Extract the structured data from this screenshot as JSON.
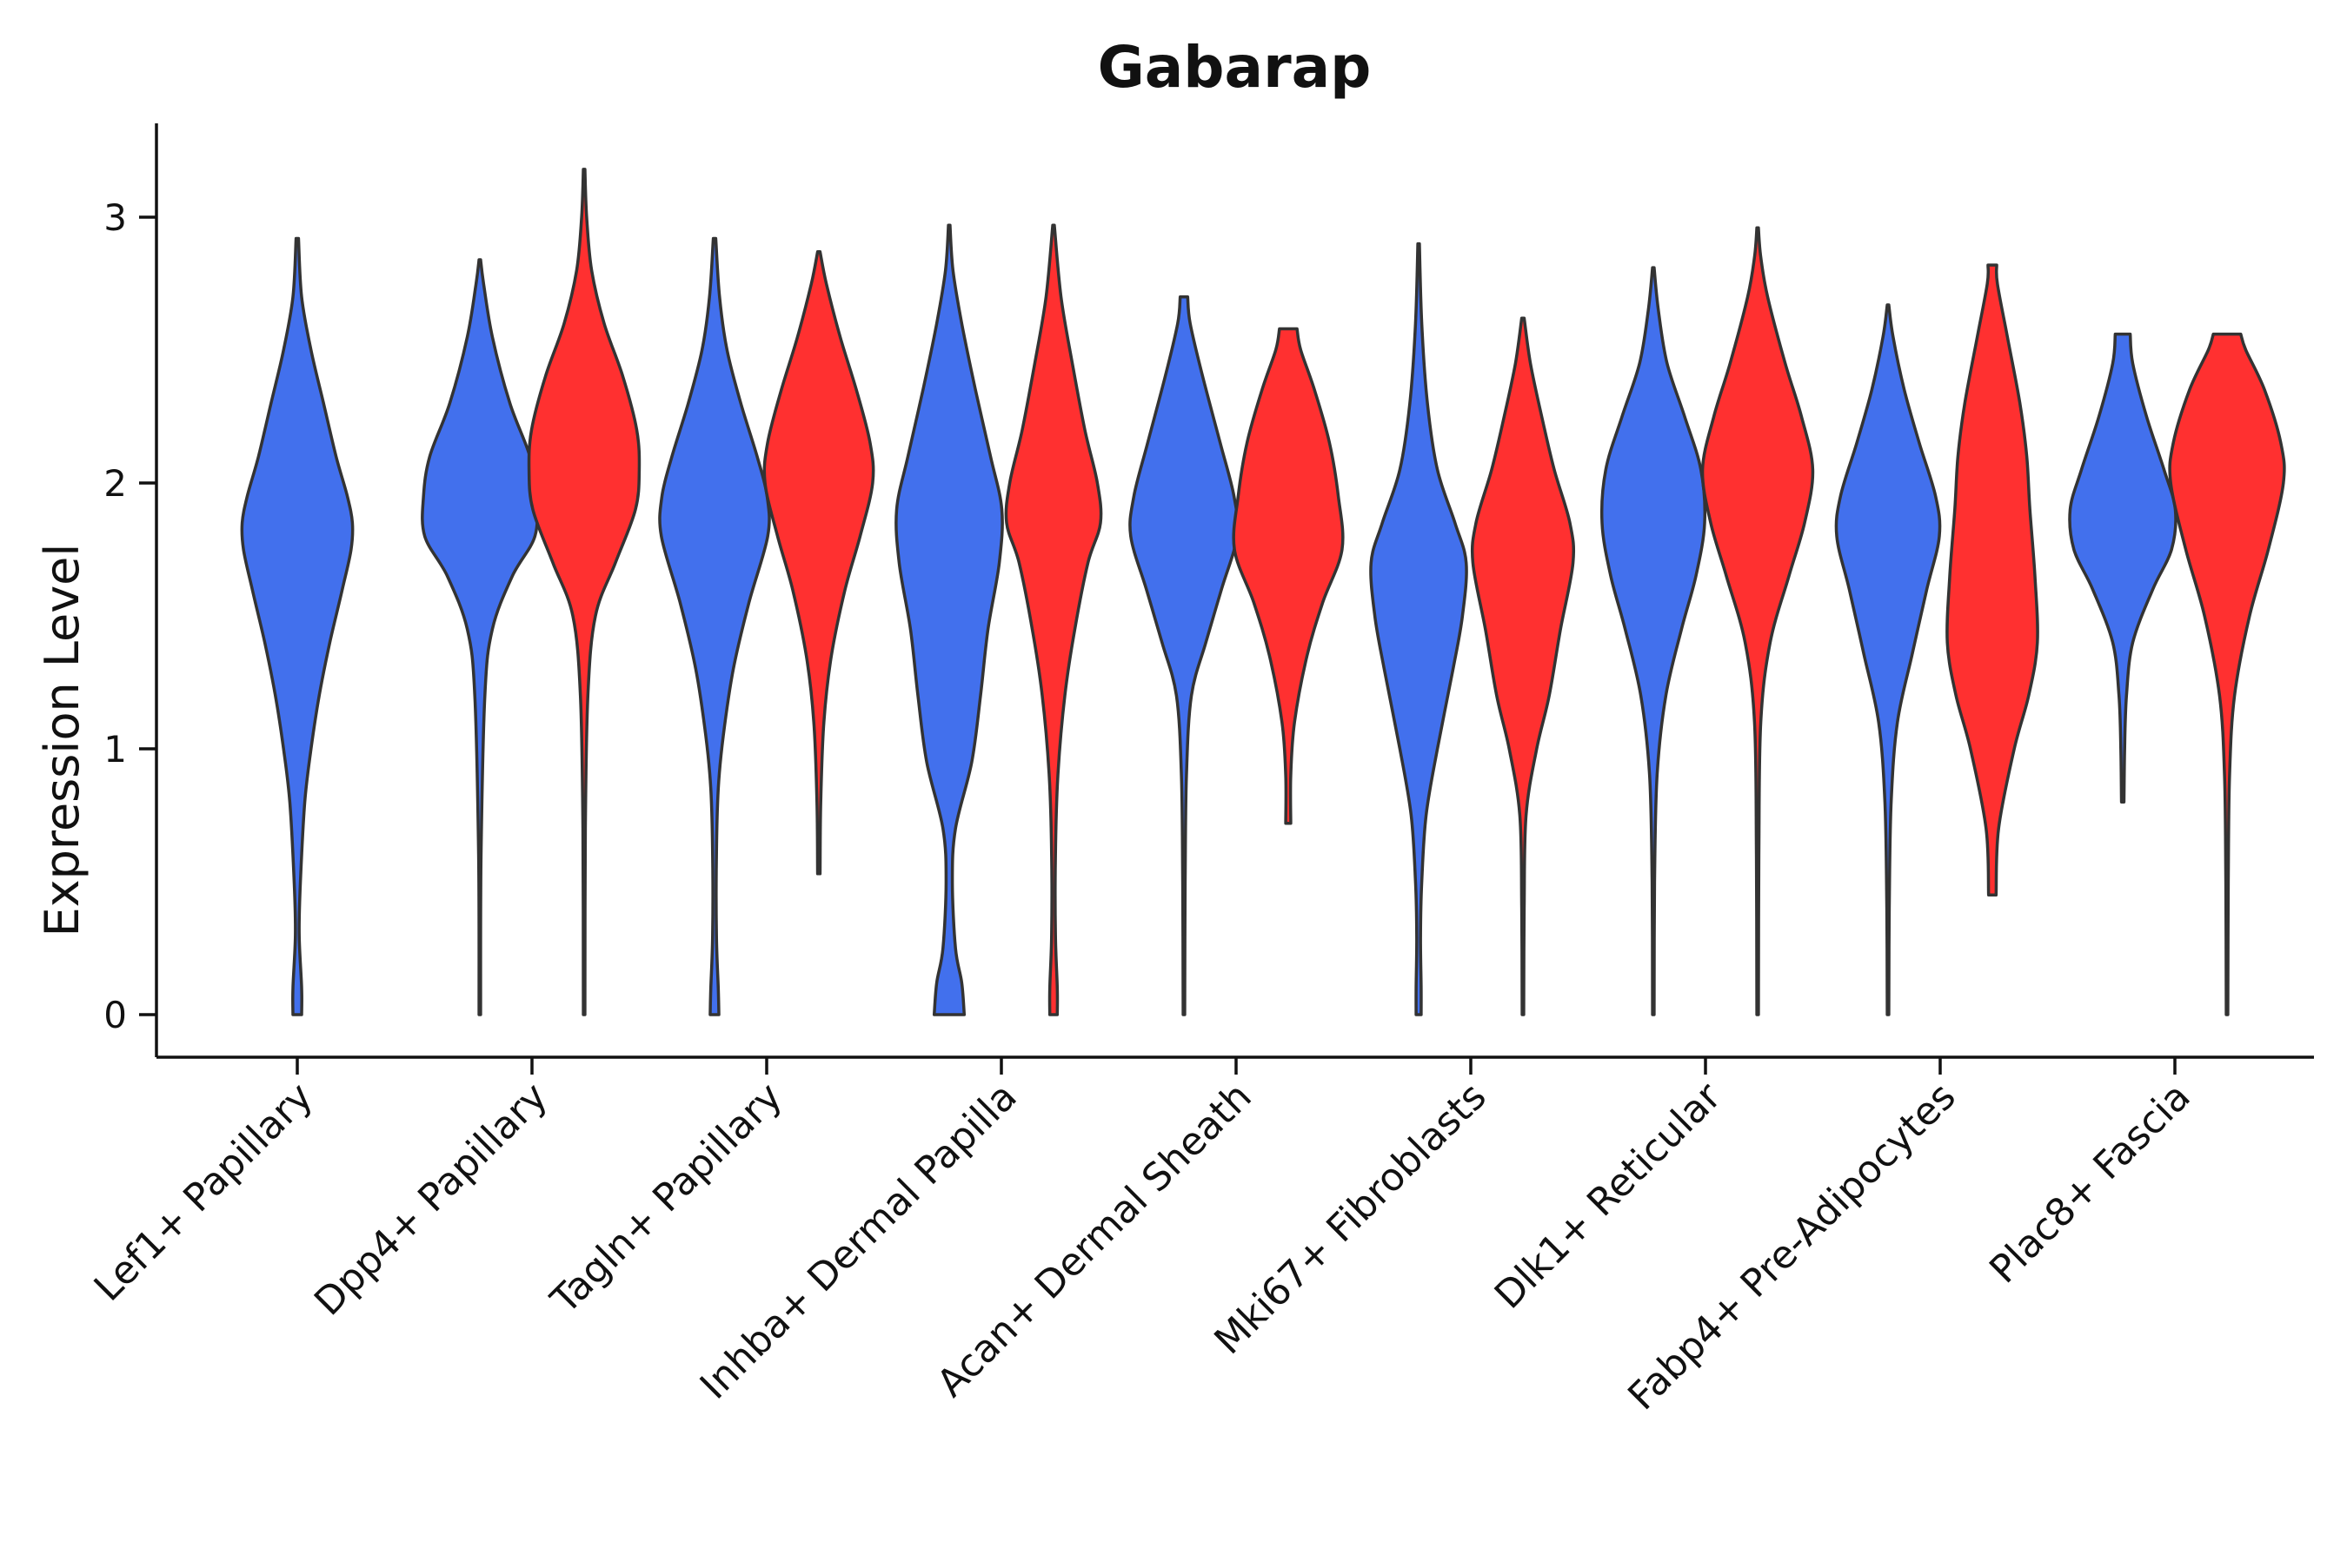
{
  "chart_data": {
    "type": "violin",
    "title": "Gabarap",
    "xlabel": "",
    "ylabel": "Expression Level",
    "ylim": [
      -0.15,
      3.35
    ],
    "yticks": [
      0,
      1,
      2,
      3
    ],
    "grid": false,
    "legend": "none",
    "colors": {
      "group_a": "#4270ED",
      "group_b": "#FF3030",
      "outline": "#333333"
    },
    "categories": [
      "Lef1+ Papillary",
      "Dpp4+ Papillary",
      "Tagln+ Papillary",
      "Inhba+ Dermal Papilla",
      "Acan+ Dermal Sheath",
      "Mki67+ Fibroblasts",
      "Dlk1+ Reticular",
      "Fabp4+ Pre-Adipocytes",
      "Plac8+ Fascia"
    ],
    "violins": [
      {
        "category": "Lef1+ Papillary",
        "group": "a",
        "min": 0.0,
        "max": 2.92,
        "profile": [
          [
            0.0,
            0.07
          ],
          [
            0.1,
            0.07
          ],
          [
            0.3,
            0.03
          ],
          [
            0.5,
            0.05
          ],
          [
            0.8,
            0.12
          ],
          [
            1.0,
            0.22
          ],
          [
            1.2,
            0.35
          ],
          [
            1.4,
            0.52
          ],
          [
            1.6,
            0.72
          ],
          [
            1.75,
            0.86
          ],
          [
            1.85,
            0.88
          ],
          [
            1.95,
            0.8
          ],
          [
            2.1,
            0.62
          ],
          [
            2.3,
            0.42
          ],
          [
            2.5,
            0.22
          ],
          [
            2.7,
            0.07
          ],
          [
            2.92,
            0.02
          ]
        ]
      },
      {
        "category": "Dpp4+ Papillary",
        "group": "a",
        "min": 0.0,
        "max": 2.84,
        "profile": [
          [
            0.0,
            0.01
          ],
          [
            0.6,
            0.02
          ],
          [
            1.2,
            0.08
          ],
          [
            1.45,
            0.2
          ],
          [
            1.65,
            0.52
          ],
          [
            1.8,
            0.88
          ],
          [
            1.95,
            0.9
          ],
          [
            2.1,
            0.8
          ],
          [
            2.3,
            0.48
          ],
          [
            2.55,
            0.2
          ],
          [
            2.75,
            0.06
          ],
          [
            2.84,
            0.01
          ]
        ]
      },
      {
        "category": "Dpp4+ Papillary",
        "group": "b",
        "min": 0.0,
        "max": 3.18,
        "profile": [
          [
            0.0,
            0.01
          ],
          [
            0.7,
            0.02
          ],
          [
            1.2,
            0.06
          ],
          [
            1.5,
            0.18
          ],
          [
            1.7,
            0.5
          ],
          [
            1.9,
            0.82
          ],
          [
            2.05,
            0.88
          ],
          [
            2.2,
            0.84
          ],
          [
            2.4,
            0.62
          ],
          [
            2.6,
            0.32
          ],
          [
            2.8,
            0.12
          ],
          [
            3.0,
            0.04
          ],
          [
            3.18,
            0.01
          ]
        ]
      },
      {
        "category": "Tagln+ Papillary",
        "group": "a",
        "min": 0.0,
        "max": 2.92,
        "profile": [
          [
            0.0,
            0.07
          ],
          [
            0.1,
            0.06
          ],
          [
            0.3,
            0.03
          ],
          [
            0.6,
            0.03
          ],
          [
            0.85,
            0.06
          ],
          [
            1.05,
            0.14
          ],
          [
            1.3,
            0.3
          ],
          [
            1.55,
            0.55
          ],
          [
            1.8,
            0.85
          ],
          [
            1.95,
            0.84
          ],
          [
            2.1,
            0.68
          ],
          [
            2.3,
            0.42
          ],
          [
            2.5,
            0.2
          ],
          [
            2.7,
            0.08
          ],
          [
            2.92,
            0.02
          ]
        ]
      },
      {
        "category": "Tagln+ Papillary",
        "group": "b",
        "min": 0.53,
        "max": 2.87,
        "profile": [
          [
            0.53,
            0.02
          ],
          [
            0.8,
            0.03
          ],
          [
            1.1,
            0.08
          ],
          [
            1.35,
            0.2
          ],
          [
            1.6,
            0.42
          ],
          [
            1.8,
            0.66
          ],
          [
            2.0,
            0.86
          ],
          [
            2.15,
            0.82
          ],
          [
            2.35,
            0.6
          ],
          [
            2.55,
            0.34
          ],
          [
            2.75,
            0.12
          ],
          [
            2.87,
            0.02
          ]
        ]
      },
      {
        "category": "Inhba+ Dermal Papilla",
        "group": "a",
        "min": 0.0,
        "max": 2.97,
        "profile": [
          [
            0.0,
            0.24
          ],
          [
            0.12,
            0.2
          ],
          [
            0.25,
            0.1
          ],
          [
            0.5,
            0.05
          ],
          [
            0.7,
            0.1
          ],
          [
            0.95,
            0.36
          ],
          [
            1.2,
            0.5
          ],
          [
            1.45,
            0.62
          ],
          [
            1.7,
            0.8
          ],
          [
            1.9,
            0.84
          ],
          [
            2.1,
            0.66
          ],
          [
            2.35,
            0.42
          ],
          [
            2.6,
            0.2
          ],
          [
            2.8,
            0.06
          ],
          [
            2.97,
            0.01
          ]
        ]
      },
      {
        "category": "Inhba+ Dermal Papilla",
        "group": "b",
        "min": 0.0,
        "max": 2.97,
        "profile": [
          [
            0.0,
            0.06
          ],
          [
            0.1,
            0.06
          ],
          [
            0.3,
            0.03
          ],
          [
            0.6,
            0.03
          ],
          [
            0.9,
            0.07
          ],
          [
            1.2,
            0.18
          ],
          [
            1.45,
            0.34
          ],
          [
            1.7,
            0.55
          ],
          [
            1.85,
            0.75
          ],
          [
            2.0,
            0.7
          ],
          [
            2.2,
            0.5
          ],
          [
            2.45,
            0.3
          ],
          [
            2.7,
            0.12
          ],
          [
            2.97,
            0.01
          ]
        ]
      },
      {
        "category": "Acan+ Dermal Sheath",
        "group": "a",
        "min": 0.0,
        "max": 2.7,
        "profile": [
          [
            0.0,
            0.01
          ],
          [
            0.5,
            0.02
          ],
          [
            0.9,
            0.04
          ],
          [
            1.2,
            0.12
          ],
          [
            1.4,
            0.35
          ],
          [
            1.6,
            0.6
          ],
          [
            1.8,
            0.85
          ],
          [
            1.95,
            0.8
          ],
          [
            2.15,
            0.58
          ],
          [
            2.4,
            0.3
          ],
          [
            2.6,
            0.1
          ],
          [
            2.7,
            0.06
          ]
        ]
      },
      {
        "category": "Acan+ Dermal Sheath",
        "group": "b",
        "min": 0.72,
        "max": 2.58,
        "profile": [
          [
            0.72,
            0.04
          ],
          [
            0.9,
            0.04
          ],
          [
            1.1,
            0.1
          ],
          [
            1.35,
            0.3
          ],
          [
            1.55,
            0.55
          ],
          [
            1.75,
            0.86
          ],
          [
            1.95,
            0.8
          ],
          [
            2.15,
            0.66
          ],
          [
            2.35,
            0.42
          ],
          [
            2.5,
            0.2
          ],
          [
            2.58,
            0.14
          ]
        ]
      },
      {
        "category": "Mki67+ Fibroblasts",
        "group": "a",
        "min": 0.0,
        "max": 2.9,
        "profile": [
          [
            0.0,
            0.04
          ],
          [
            0.1,
            0.04
          ],
          [
            0.3,
            0.03
          ],
          [
            0.5,
            0.05
          ],
          [
            0.75,
            0.12
          ],
          [
            1.0,
            0.3
          ],
          [
            1.3,
            0.55
          ],
          [
            1.5,
            0.7
          ],
          [
            1.7,
            0.76
          ],
          [
            1.85,
            0.58
          ],
          [
            2.05,
            0.3
          ],
          [
            2.3,
            0.14
          ],
          [
            2.6,
            0.05
          ],
          [
            2.9,
            0.01
          ]
        ]
      },
      {
        "category": "Mki67+ Fibroblasts",
        "group": "b",
        "min": 0.0,
        "max": 2.62,
        "profile": [
          [
            0.0,
            0.01
          ],
          [
            0.4,
            0.02
          ],
          [
            0.75,
            0.05
          ],
          [
            1.0,
            0.22
          ],
          [
            1.2,
            0.42
          ],
          [
            1.45,
            0.6
          ],
          [
            1.7,
            0.8
          ],
          [
            1.85,
            0.75
          ],
          [
            2.05,
            0.5
          ],
          [
            2.25,
            0.3
          ],
          [
            2.45,
            0.12
          ],
          [
            2.62,
            0.02
          ]
        ]
      },
      {
        "category": "Dlk1+ Reticular",
        "group": "a",
        "min": 0.0,
        "max": 2.81,
        "profile": [
          [
            0.0,
            0.01
          ],
          [
            0.5,
            0.02
          ],
          [
            0.9,
            0.06
          ],
          [
            1.2,
            0.2
          ],
          [
            1.45,
            0.45
          ],
          [
            1.65,
            0.68
          ],
          [
            1.85,
            0.82
          ],
          [
            2.05,
            0.76
          ],
          [
            2.25,
            0.5
          ],
          [
            2.45,
            0.22
          ],
          [
            2.65,
            0.08
          ],
          [
            2.81,
            0.01
          ]
        ]
      },
      {
        "category": "Dlk1+ Reticular",
        "group": "b",
        "min": 0.0,
        "max": 2.96,
        "profile": [
          [
            0.0,
            0.01
          ],
          [
            0.6,
            0.02
          ],
          [
            1.1,
            0.05
          ],
          [
            1.4,
            0.2
          ],
          [
            1.65,
            0.5
          ],
          [
            1.85,
            0.75
          ],
          [
            2.05,
            0.88
          ],
          [
            2.25,
            0.7
          ],
          [
            2.45,
            0.44
          ],
          [
            2.7,
            0.16
          ],
          [
            2.85,
            0.05
          ],
          [
            2.96,
            0.01
          ]
        ]
      },
      {
        "category": "Fabp4+ Pre-Adipocytes",
        "group": "a",
        "min": 0.0,
        "max": 2.67,
        "profile": [
          [
            0.0,
            0.01
          ],
          [
            0.4,
            0.02
          ],
          [
            0.8,
            0.05
          ],
          [
            1.1,
            0.15
          ],
          [
            1.35,
            0.38
          ],
          [
            1.6,
            0.62
          ],
          [
            1.8,
            0.82
          ],
          [
            1.95,
            0.76
          ],
          [
            2.15,
            0.5
          ],
          [
            2.35,
            0.26
          ],
          [
            2.55,
            0.08
          ],
          [
            2.67,
            0.01
          ]
        ]
      },
      {
        "category": "Fabp4+ Pre-Adipocytes",
        "group": "b",
        "min": 0.45,
        "max": 2.82,
        "profile": [
          [
            0.45,
            0.06
          ],
          [
            0.7,
            0.1
          ],
          [
            1.0,
            0.35
          ],
          [
            1.2,
            0.58
          ],
          [
            1.4,
            0.72
          ],
          [
            1.65,
            0.68
          ],
          [
            1.9,
            0.6
          ],
          [
            2.1,
            0.55
          ],
          [
            2.3,
            0.44
          ],
          [
            2.55,
            0.24
          ],
          [
            2.75,
            0.08
          ],
          [
            2.82,
            0.07
          ]
        ]
      },
      {
        "category": "Plac8+ Fascia",
        "group": "a",
        "min": 0.8,
        "max": 2.56,
        "profile": [
          [
            0.8,
            0.02
          ],
          [
            1.0,
            0.03
          ],
          [
            1.2,
            0.06
          ],
          [
            1.4,
            0.16
          ],
          [
            1.6,
            0.48
          ],
          [
            1.75,
            0.78
          ],
          [
            1.9,
            0.84
          ],
          [
            2.05,
            0.66
          ],
          [
            2.25,
            0.38
          ],
          [
            2.45,
            0.16
          ],
          [
            2.56,
            0.12
          ]
        ]
      },
      {
        "category": "Plac8+ Fascia",
        "group": "b",
        "min": 0.0,
        "max": 2.56,
        "profile": [
          [
            0.0,
            0.01
          ],
          [
            0.5,
            0.02
          ],
          [
            0.9,
            0.04
          ],
          [
            1.2,
            0.12
          ],
          [
            1.5,
            0.36
          ],
          [
            1.75,
            0.66
          ],
          [
            2.0,
            0.9
          ],
          [
            2.15,
            0.86
          ],
          [
            2.35,
            0.6
          ],
          [
            2.5,
            0.3
          ],
          [
            2.56,
            0.22
          ]
        ]
      }
    ]
  }
}
